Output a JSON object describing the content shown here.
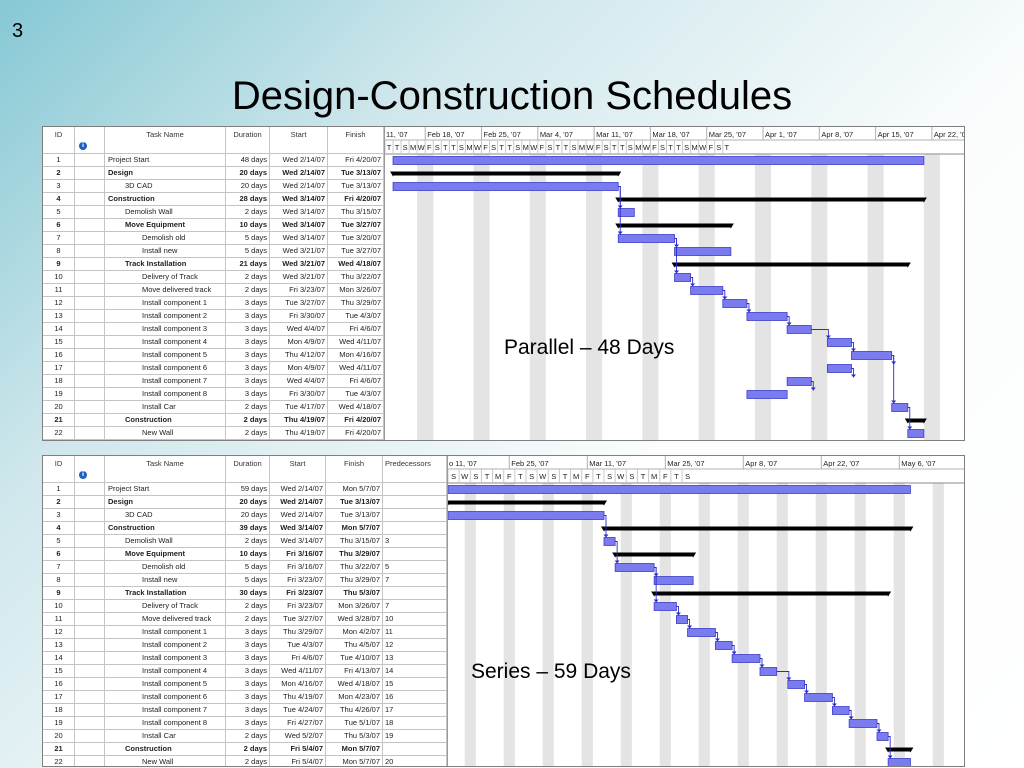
{
  "slide": {
    "number": "3",
    "title": "Design-Construction Schedules",
    "colors": {
      "task_bar": "#7b7bf0",
      "task_bar_border": "#3d3dc8",
      "summary_bar": "#000000",
      "link": "#2b2bd0",
      "nonworking": "#e4e4e4"
    }
  },
  "parallel": {
    "caption": "Parallel – 48 Days",
    "columns": {
      "id": "ID",
      "info_icon": "info-icon",
      "task_name": "Task Name",
      "duration": "Duration",
      "start": "Start",
      "finish": "Finish"
    },
    "timescale": {
      "weeks": [
        "11, '07",
        "Feb 18, '07",
        "Feb 25, '07",
        "Mar 4, '07",
        "Mar 11, '07",
        "Mar 18, '07",
        "Mar 25, '07",
        "Apr 1, '07",
        "Apr 8, '07",
        "Apr 15, '07",
        "Apr 22, '0"
      ],
      "days": [
        "T",
        "T",
        "S",
        "M",
        "W",
        "F",
        "S",
        "T",
        "T",
        "S",
        "M",
        "W",
        "F",
        "S",
        "T",
        "T",
        "S",
        "M",
        "W",
        "F",
        "S",
        "T",
        "T",
        "S",
        "M",
        "W",
        "F",
        "S",
        "T",
        "T",
        "S",
        "M",
        "W",
        "F",
        "S",
        "T",
        "T",
        "S",
        "M",
        "W",
        "F",
        "S",
        "T"
      ]
    },
    "rows": [
      {
        "id": "1",
        "name": "Project Start",
        "duration": "48 days",
        "start": "Wed 2/14/07",
        "finish": "Fri 4/20/07",
        "summary": false,
        "level": 0,
        "bar_start": "2007-02-14",
        "bar_finish": "2007-04-20"
      },
      {
        "id": "2",
        "name": "Design",
        "duration": "20 days",
        "start": "Wed 2/14/07",
        "finish": "Tue 3/13/07",
        "summary": true,
        "level": 0,
        "bar_start": "2007-02-14",
        "bar_finish": "2007-03-13"
      },
      {
        "id": "3",
        "name": "3D CAD",
        "duration": "20 days",
        "start": "Wed 2/14/07",
        "finish": "Tue 3/13/07",
        "summary": false,
        "level": 1,
        "bar_start": "2007-02-14",
        "bar_finish": "2007-03-13"
      },
      {
        "id": "4",
        "name": "Construction",
        "duration": "28 days",
        "start": "Wed 3/14/07",
        "finish": "Fri 4/20/07",
        "summary": true,
        "level": 0,
        "bar_start": "2007-03-14",
        "bar_finish": "2007-04-20"
      },
      {
        "id": "5",
        "name": "Demolish Wall",
        "duration": "2 days",
        "start": "Wed 3/14/07",
        "finish": "Thu 3/15/07",
        "summary": false,
        "level": 1,
        "bar_start": "2007-03-14",
        "bar_finish": "2007-03-15"
      },
      {
        "id": "6",
        "name": "Move Equipment",
        "duration": "10 days",
        "start": "Wed 3/14/07",
        "finish": "Tue 3/27/07",
        "summary": true,
        "level": 1,
        "bar_start": "2007-03-14",
        "bar_finish": "2007-03-27"
      },
      {
        "id": "7",
        "name": "Demolish old",
        "duration": "5 days",
        "start": "Wed 3/14/07",
        "finish": "Tue 3/20/07",
        "summary": false,
        "level": 2,
        "bar_start": "2007-03-14",
        "bar_finish": "2007-03-20"
      },
      {
        "id": "8",
        "name": "Install new",
        "duration": "5 days",
        "start": "Wed 3/21/07",
        "finish": "Tue 3/27/07",
        "summary": false,
        "level": 2,
        "bar_start": "2007-03-21",
        "bar_finish": "2007-03-27"
      },
      {
        "id": "9",
        "name": "Track Installation",
        "duration": "21 days",
        "start": "Wed 3/21/07",
        "finish": "Wed 4/18/07",
        "summary": true,
        "level": 1,
        "bar_start": "2007-03-21",
        "bar_finish": "2007-04-18"
      },
      {
        "id": "10",
        "name": "Delivery of Track",
        "duration": "2 days",
        "start": "Wed 3/21/07",
        "finish": "Thu 3/22/07",
        "summary": false,
        "level": 2,
        "bar_start": "2007-03-21",
        "bar_finish": "2007-03-22"
      },
      {
        "id": "11",
        "name": "Move delivered track",
        "duration": "2 days",
        "start": "Fri 3/23/07",
        "finish": "Mon 3/26/07",
        "summary": false,
        "level": 2,
        "bar_start": "2007-03-23",
        "bar_finish": "2007-03-26"
      },
      {
        "id": "12",
        "name": "Install component 1",
        "duration": "3 days",
        "start": "Tue 3/27/07",
        "finish": "Thu 3/29/07",
        "summary": false,
        "level": 2,
        "bar_start": "2007-03-27",
        "bar_finish": "2007-03-29"
      },
      {
        "id": "13",
        "name": "Install component 2",
        "duration": "3 days",
        "start": "Fri 3/30/07",
        "finish": "Tue 4/3/07",
        "summary": false,
        "level": 2,
        "bar_start": "2007-03-30",
        "bar_finish": "2007-04-03"
      },
      {
        "id": "14",
        "name": "Install component 3",
        "duration": "3 days",
        "start": "Wed 4/4/07",
        "finish": "Fri 4/6/07",
        "summary": false,
        "level": 2,
        "bar_start": "2007-04-04",
        "bar_finish": "2007-04-06"
      },
      {
        "id": "15",
        "name": "Install component 4",
        "duration": "3 days",
        "start": "Mon 4/9/07",
        "finish": "Wed 4/11/07",
        "summary": false,
        "level": 2,
        "bar_start": "2007-04-09",
        "bar_finish": "2007-04-11"
      },
      {
        "id": "16",
        "name": "Install component 5",
        "duration": "3 days",
        "start": "Thu 4/12/07",
        "finish": "Mon 4/16/07",
        "summary": false,
        "level": 2,
        "bar_start": "2007-04-12",
        "bar_finish": "2007-04-16"
      },
      {
        "id": "17",
        "name": "Install component 6",
        "duration": "3 days",
        "start": "Mon 4/9/07",
        "finish": "Wed 4/11/07",
        "summary": false,
        "level": 2,
        "bar_start": "2007-04-09",
        "bar_finish": "2007-04-11"
      },
      {
        "id": "18",
        "name": "Install component 7",
        "duration": "3 days",
        "start": "Wed 4/4/07",
        "finish": "Fri 4/6/07",
        "summary": false,
        "level": 2,
        "bar_start": "2007-04-04",
        "bar_finish": "2007-04-06"
      },
      {
        "id": "19",
        "name": "Install component 8",
        "duration": "3 days",
        "start": "Fri 3/30/07",
        "finish": "Tue 4/3/07",
        "summary": false,
        "level": 2,
        "bar_start": "2007-03-30",
        "bar_finish": "2007-04-03"
      },
      {
        "id": "20",
        "name": "Install Car",
        "duration": "2 days",
        "start": "Tue 4/17/07",
        "finish": "Wed 4/18/07",
        "summary": false,
        "level": 2,
        "bar_start": "2007-04-17",
        "bar_finish": "2007-04-18"
      },
      {
        "id": "21",
        "name": "Construction",
        "duration": "2 days",
        "start": "Thu 4/19/07",
        "finish": "Fri 4/20/07",
        "summary": true,
        "level": 1,
        "bar_start": "2007-04-19",
        "bar_finish": "2007-04-20"
      },
      {
        "id": "22",
        "name": "New Wall",
        "duration": "2 days",
        "start": "Thu 4/19/07",
        "finish": "Fri 4/20/07",
        "summary": false,
        "level": 2,
        "bar_start": "2007-04-19",
        "bar_finish": "2007-04-20"
      }
    ],
    "links": [
      [
        3,
        5
      ],
      [
        3,
        7
      ],
      [
        7,
        8
      ],
      [
        7,
        10
      ],
      [
        10,
        11
      ],
      [
        11,
        12
      ],
      [
        12,
        13
      ],
      [
        13,
        14
      ],
      [
        14,
        15
      ],
      [
        15,
        16
      ],
      [
        16,
        17
      ],
      [
        17,
        18
      ],
      [
        18,
        19
      ],
      [
        16,
        20
      ],
      [
        20,
        22
      ]
    ]
  },
  "series": {
    "caption": "Series – 59 Days",
    "columns": {
      "id": "ID",
      "info_icon": "info-icon",
      "task_name": "Task Name",
      "duration": "Duration",
      "start": "Start",
      "finish": "Finish",
      "predecessors": "Predecessors"
    },
    "timescale": {
      "weeks": [
        "o 11, '07",
        "Feb 25, '07",
        "Mar 11, '07",
        "Mar 25, '07",
        "Apr 8, '07",
        "Apr 22, '07",
        "May 6, '07"
      ],
      "days": [
        "T",
        "S",
        "W",
        "S",
        "T",
        "M",
        "F",
        "T",
        "S",
        "W",
        "S",
        "T",
        "M",
        "F",
        "T",
        "S",
        "W",
        "S",
        "T",
        "M",
        "F",
        "T",
        "S"
      ]
    },
    "rows": [
      {
        "id": "1",
        "name": "Project Start",
        "duration": "59 days",
        "start": "Wed 2/14/07",
        "finish": "Mon 5/7/07",
        "predecessors": "",
        "summary": false,
        "level": 0,
        "bar_start": "2007-02-14",
        "bar_finish": "2007-05-07"
      },
      {
        "id": "2",
        "name": "Design",
        "duration": "20 days",
        "start": "Wed 2/14/07",
        "finish": "Tue 3/13/07",
        "predecessors": "",
        "summary": true,
        "level": 0,
        "bar_start": "2007-02-14",
        "bar_finish": "2007-03-13"
      },
      {
        "id": "3",
        "name": "3D CAD",
        "duration": "20 days",
        "start": "Wed 2/14/07",
        "finish": "Tue 3/13/07",
        "predecessors": "",
        "summary": false,
        "level": 1,
        "bar_start": "2007-02-14",
        "bar_finish": "2007-03-13"
      },
      {
        "id": "4",
        "name": "Construction",
        "duration": "39 days",
        "start": "Wed 3/14/07",
        "finish": "Mon 5/7/07",
        "predecessors": "",
        "summary": true,
        "level": 0,
        "bar_start": "2007-03-14",
        "bar_finish": "2007-05-07"
      },
      {
        "id": "5",
        "name": "Demolish Wall",
        "duration": "2 days",
        "start": "Wed 3/14/07",
        "finish": "Thu 3/15/07",
        "predecessors": "3",
        "summary": false,
        "level": 1,
        "bar_start": "2007-03-14",
        "bar_finish": "2007-03-15"
      },
      {
        "id": "6",
        "name": "Move Equipment",
        "duration": "10 days",
        "start": "Fri 3/16/07",
        "finish": "Thu 3/29/07",
        "predecessors": "",
        "summary": true,
        "level": 1,
        "bar_start": "2007-03-16",
        "bar_finish": "2007-03-29"
      },
      {
        "id": "7",
        "name": "Demolish old",
        "duration": "5 days",
        "start": "Fri 3/16/07",
        "finish": "Thu 3/22/07",
        "predecessors": "5",
        "summary": false,
        "level": 2,
        "bar_start": "2007-03-16",
        "bar_finish": "2007-03-22"
      },
      {
        "id": "8",
        "name": "Install new",
        "duration": "5 days",
        "start": "Fri 3/23/07",
        "finish": "Thu 3/29/07",
        "predecessors": "7",
        "summary": false,
        "level": 2,
        "bar_start": "2007-03-23",
        "bar_finish": "2007-03-29"
      },
      {
        "id": "9",
        "name": "Track Installation",
        "duration": "30 days",
        "start": "Fri 3/23/07",
        "finish": "Thu 5/3/07",
        "predecessors": "",
        "summary": true,
        "level": 1,
        "bar_start": "2007-03-23",
        "bar_finish": "2007-05-03"
      },
      {
        "id": "10",
        "name": "Delivery of Track",
        "duration": "2 days",
        "start": "Fri 3/23/07",
        "finish": "Mon 3/26/07",
        "predecessors": "7",
        "summary": false,
        "level": 2,
        "bar_start": "2007-03-23",
        "bar_finish": "2007-03-26"
      },
      {
        "id": "11",
        "name": "Move delivered track",
        "duration": "2 days",
        "start": "Tue 3/27/07",
        "finish": "Wed 3/28/07",
        "predecessors": "10",
        "summary": false,
        "level": 2,
        "bar_start": "2007-03-27",
        "bar_finish": "2007-03-28"
      },
      {
        "id": "12",
        "name": "Install component 1",
        "duration": "3 days",
        "start": "Thu 3/29/07",
        "finish": "Mon 4/2/07",
        "predecessors": "11",
        "summary": false,
        "level": 2,
        "bar_start": "2007-03-29",
        "bar_finish": "2007-04-02"
      },
      {
        "id": "13",
        "name": "Install component 2",
        "duration": "3 days",
        "start": "Tue 4/3/07",
        "finish": "Thu 4/5/07",
        "predecessors": "12",
        "summary": false,
        "level": 2,
        "bar_start": "2007-04-03",
        "bar_finish": "2007-04-05"
      },
      {
        "id": "14",
        "name": "Install component 3",
        "duration": "3 days",
        "start": "Fri 4/6/07",
        "finish": "Tue 4/10/07",
        "predecessors": "13",
        "summary": false,
        "level": 2,
        "bar_start": "2007-04-06",
        "bar_finish": "2007-04-10"
      },
      {
        "id": "15",
        "name": "Install component 4",
        "duration": "3 days",
        "start": "Wed 4/11/07",
        "finish": "Fri 4/13/07",
        "predecessors": "14",
        "summary": false,
        "level": 2,
        "bar_start": "2007-04-11",
        "bar_finish": "2007-04-13"
      },
      {
        "id": "16",
        "name": "Install component 5",
        "duration": "3 days",
        "start": "Mon 4/16/07",
        "finish": "Wed 4/18/07",
        "predecessors": "15",
        "summary": false,
        "level": 2,
        "bar_start": "2007-04-16",
        "bar_finish": "2007-04-18"
      },
      {
        "id": "17",
        "name": "Install component 6",
        "duration": "3 days",
        "start": "Thu 4/19/07",
        "finish": "Mon 4/23/07",
        "predecessors": "16",
        "summary": false,
        "level": 2,
        "bar_start": "2007-04-19",
        "bar_finish": "2007-04-23"
      },
      {
        "id": "18",
        "name": "Install component 7",
        "duration": "3 days",
        "start": "Tue 4/24/07",
        "finish": "Thu 4/26/07",
        "predecessors": "17",
        "summary": false,
        "level": 2,
        "bar_start": "2007-04-24",
        "bar_finish": "2007-04-26"
      },
      {
        "id": "19",
        "name": "Install component 8",
        "duration": "3 days",
        "start": "Fri 4/27/07",
        "finish": "Tue 5/1/07",
        "predecessors": "18",
        "summary": false,
        "level": 2,
        "bar_start": "2007-04-27",
        "bar_finish": "2007-05-01"
      },
      {
        "id": "20",
        "name": "Install Car",
        "duration": "2 days",
        "start": "Wed 5/2/07",
        "finish": "Thu 5/3/07",
        "predecessors": "19",
        "summary": false,
        "level": 2,
        "bar_start": "2007-05-02",
        "bar_finish": "2007-05-03"
      },
      {
        "id": "21",
        "name": "Construction",
        "duration": "2 days",
        "start": "Fri 5/4/07",
        "finish": "Mon 5/7/07",
        "predecessors": "",
        "summary": true,
        "level": 1,
        "bar_start": "2007-05-04",
        "bar_finish": "2007-05-07"
      },
      {
        "id": "22",
        "name": "New Wall",
        "duration": "2 days",
        "start": "Fri 5/4/07",
        "finish": "Mon 5/7/07",
        "predecessors": "20",
        "summary": false,
        "level": 2,
        "bar_start": "2007-05-04",
        "bar_finish": "2007-05-07"
      }
    ],
    "links": [
      [
        3,
        5
      ],
      [
        5,
        7
      ],
      [
        7,
        8
      ],
      [
        7,
        10
      ],
      [
        10,
        11
      ],
      [
        11,
        12
      ],
      [
        12,
        13
      ],
      [
        13,
        14
      ],
      [
        14,
        15
      ],
      [
        15,
        16
      ],
      [
        16,
        17
      ],
      [
        17,
        18
      ],
      [
        18,
        19
      ],
      [
        19,
        20
      ],
      [
        20,
        22
      ]
    ]
  }
}
